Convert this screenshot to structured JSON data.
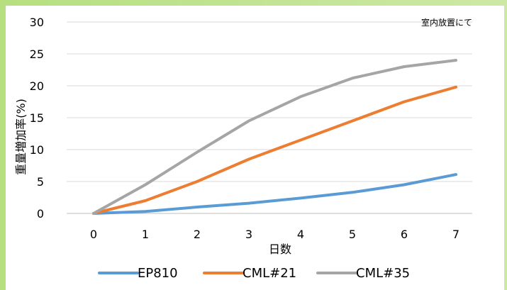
{
  "chart_data": {
    "type": "line",
    "annotation": "室内放置にて",
    "xlabel": "日数",
    "ylabel": "重量増加率(%)",
    "x": [
      0,
      1,
      2,
      3,
      4,
      5,
      6,
      7
    ],
    "xlim": [
      0,
      7
    ],
    "ylim": [
      0,
      30
    ],
    "yticks": [
      0,
      5,
      10,
      15,
      20,
      25,
      30
    ],
    "grid": true,
    "legend_position": "bottom",
    "series": [
      {
        "name": "EP810",
        "color": "#5b9bd5",
        "values": [
          0,
          0.3,
          1.0,
          1.6,
          2.4,
          3.3,
          4.5,
          6.1
        ]
      },
      {
        "name": "CML#21",
        "color": "#ed7d31",
        "values": [
          0,
          2.0,
          5.0,
          8.5,
          11.5,
          14.5,
          17.5,
          19.8
        ]
      },
      {
        "name": "CML#35",
        "color": "#a5a5a5",
        "values": [
          0,
          4.5,
          9.6,
          14.5,
          18.3,
          21.2,
          23.0,
          24.0
        ]
      }
    ]
  }
}
